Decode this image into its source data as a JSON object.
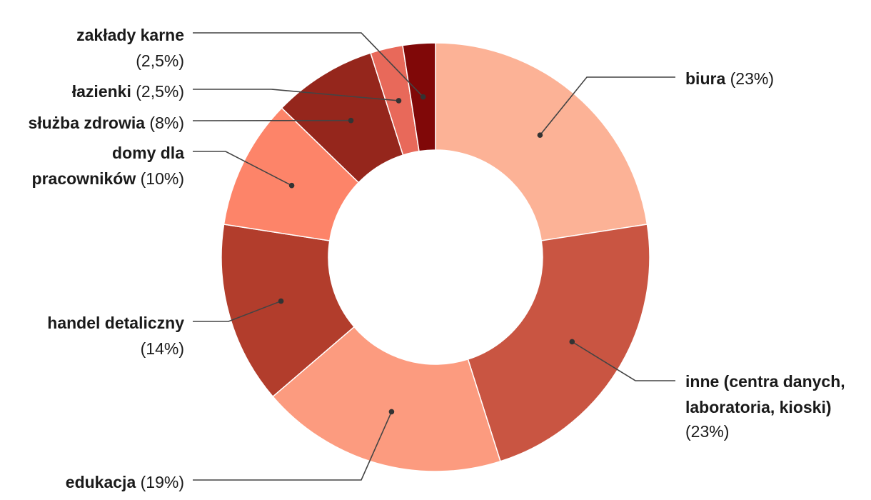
{
  "chart_data": {
    "type": "pie",
    "donut": true,
    "start": "top",
    "direction": "clockwise",
    "legend": "none",
    "slices": [
      {
        "label": "biura",
        "value": 23,
        "display": "(23%)",
        "color": "#fcb296"
      },
      {
        "label": "inne (centra danych, laboratoria, kioski)",
        "value": 23,
        "display": "(23%)",
        "color": "#c95542"
      },
      {
        "label": "edukacja",
        "value": 19,
        "display": "(19%)",
        "color": "#fc9b7f"
      },
      {
        "label": "handel detaliczny",
        "value": 14,
        "display": "(14%)",
        "color": "#b23d2c"
      },
      {
        "label": "domy dla pracowników",
        "value": 10,
        "display": "(10%)",
        "color": "#fd8469"
      },
      {
        "label": "służba zdrowia",
        "value": 8,
        "display": "(8%)",
        "color": "#95261c"
      },
      {
        "label": "łazienki",
        "value": 2.5,
        "display": "(2,5%)",
        "color": "#e8695a"
      },
      {
        "label": "zakłady karne",
        "value": 2.5,
        "display": "(2,5%)",
        "color": "#800808"
      }
    ]
  }
}
